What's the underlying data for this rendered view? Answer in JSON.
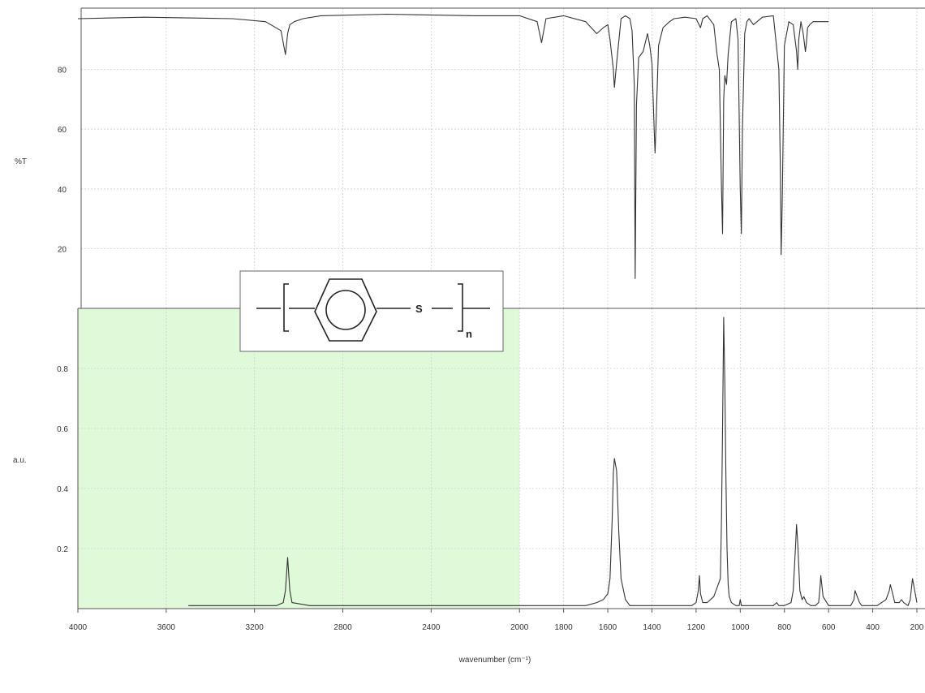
{
  "chart_data": [
    {
      "type": "line",
      "panel": "infrared",
      "ylabel": "%T",
      "xlim": [
        4000,
        200
      ],
      "ylim": [
        0,
        100
      ],
      "yticks": [
        20,
        40,
        60,
        80
      ],
      "grid": true,
      "series": [
        {
          "x": [
            4000,
            3700,
            3300,
            3150,
            3080,
            3060,
            3050,
            3040,
            3020,
            2980,
            2900,
            2600,
            2200,
            2000,
            1920,
            1900,
            1880,
            1800,
            1700,
            1650,
            1620,
            1600,
            1590,
            1575,
            1570,
            1560,
            1540,
            1520,
            1500,
            1490,
            1480,
            1476,
            1470,
            1460,
            1440,
            1420,
            1410,
            1400,
            1390,
            1386,
            1380,
            1370,
            1350,
            1320,
            1300,
            1250,
            1200,
            1180,
            1170,
            1150,
            1120,
            1105,
            1095,
            1085,
            1080,
            1075,
            1070,
            1062,
            1055,
            1040,
            1020,
            1010,
            1000,
            995,
            990,
            980,
            970,
            960,
            940,
            900,
            850,
            825,
            818,
            815,
            810,
            800,
            780,
            760,
            745,
            740,
            735,
            725,
            715,
            705,
            700,
            695,
            685,
            670,
            650,
            620,
            600
          ],
          "y": [
            97,
            97.5,
            97,
            96,
            93,
            85,
            92,
            95,
            96,
            97,
            98,
            98.5,
            98,
            98,
            96,
            89,
            97,
            98,
            96,
            92,
            94,
            95,
            90,
            80,
            74,
            82,
            97,
            98,
            97,
            93,
            75,
            10,
            68,
            84,
            86,
            92,
            88,
            82,
            60,
            52,
            65,
            88,
            94,
            96,
            97,
            97.5,
            97,
            94,
            97,
            98,
            95,
            85,
            80,
            40,
            25,
            70,
            78,
            75,
            85,
            96,
            97,
            90,
            40,
            25,
            60,
            92,
            96,
            97,
            95,
            97.5,
            98,
            80,
            45,
            18,
            35,
            88,
            96,
            95,
            86,
            80,
            90,
            96,
            92,
            86,
            89,
            94,
            95,
            96,
            96,
            96,
            96
          ]
        }
      ]
    },
    {
      "type": "line",
      "panel": "raman",
      "ylabel": "a.u.",
      "xlabel": "wavenumber (cm⁻¹)",
      "xlim": [
        4000,
        200
      ],
      "ylim": [
        0,
        1
      ],
      "yticks": [
        0.2,
        0.4,
        0.6,
        0.8
      ],
      "xticks": [
        4000,
        3600,
        3200,
        2800,
        2400,
        2000,
        1800,
        1600,
        1400,
        1200,
        1000,
        800,
        600,
        400,
        200
      ],
      "grid": true,
      "series": [
        {
          "x": [
            3500,
            3200,
            3100,
            3070,
            3060,
            3050,
            3040,
            3030,
            2950,
            2600,
            2000,
            1800,
            1700,
            1650,
            1620,
            1600,
            1590,
            1580,
            1575,
            1570,
            1560,
            1550,
            1540,
            1520,
            1500,
            1400,
            1300,
            1250,
            1220,
            1200,
            1190,
            1185,
            1180,
            1170,
            1150,
            1120,
            1110,
            1100,
            1090,
            1085,
            1080,
            1075,
            1070,
            1065,
            1060,
            1055,
            1050,
            1040,
            1020,
            1005,
            1000,
            995,
            980,
            940,
            900,
            850,
            835,
            825,
            800,
            770,
            760,
            750,
            745,
            740,
            730,
            720,
            712,
            700,
            680,
            660,
            645,
            640,
            635,
            625,
            600,
            550,
            500,
            485,
            480,
            470,
            460,
            450,
            420,
            400,
            380,
            340,
            325,
            320,
            310,
            300,
            280,
            270,
            260,
            240,
            230,
            220,
            210,
            200
          ],
          "y": [
            0.01,
            0.01,
            0.01,
            0.02,
            0.06,
            0.17,
            0.06,
            0.02,
            0.01,
            0.01,
            0.01,
            0.01,
            0.01,
            0.02,
            0.03,
            0.05,
            0.1,
            0.3,
            0.45,
            0.5,
            0.46,
            0.25,
            0.1,
            0.03,
            0.01,
            0.01,
            0.01,
            0.01,
            0.01,
            0.02,
            0.06,
            0.11,
            0.05,
            0.02,
            0.02,
            0.04,
            0.06,
            0.08,
            0.1,
            0.3,
            0.6,
            0.97,
            0.75,
            0.45,
            0.2,
            0.08,
            0.04,
            0.02,
            0.01,
            0.01,
            0.03,
            0.01,
            0.01,
            0.01,
            0.01,
            0.01,
            0.02,
            0.01,
            0.01,
            0.02,
            0.06,
            0.2,
            0.28,
            0.22,
            0.06,
            0.03,
            0.04,
            0.02,
            0.01,
            0.01,
            0.02,
            0.06,
            0.11,
            0.04,
            0.01,
            0.01,
            0.01,
            0.03,
            0.06,
            0.04,
            0.02,
            0.01,
            0.01,
            0.01,
            0.01,
            0.03,
            0.06,
            0.08,
            0.05,
            0.02,
            0.02,
            0.03,
            0.02,
            0.01,
            0.03,
            0.1,
            0.06,
            0.02
          ]
        }
      ]
    }
  ],
  "structure": {
    "atom": "S",
    "repeat_subscript": "n",
    "box_color": "#ffffff"
  },
  "highlight": {
    "color": "#d6f7cc",
    "x_range": [
      4000,
      2000
    ],
    "panel": "raman"
  }
}
